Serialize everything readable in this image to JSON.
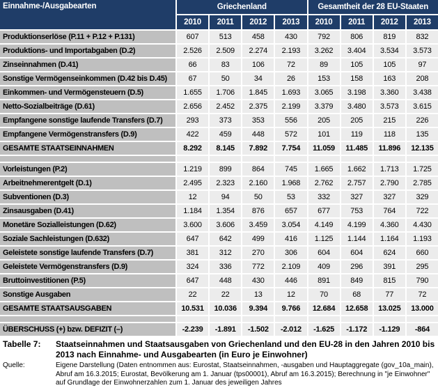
{
  "colors": {
    "header_bg": "#1f3d68",
    "header_text": "#ffffff",
    "row_label_bg": "#bfbfbf",
    "cell_bg": "#ececec",
    "grid_line": "#ffffff",
    "text": "#000000"
  },
  "table": {
    "header": {
      "row_label": "Einnahme-/Ausgabearten",
      "group1": "Griechenland",
      "group2": "Gesamtheit der 28 EU-Staaten",
      "years": [
        "2010",
        "2011",
        "2012",
        "2013",
        "2010",
        "2011",
        "2012",
        "2013"
      ]
    },
    "rows": [
      {
        "style": "data",
        "label": "Produktionserlöse (P.11 + P.12 + P.131)",
        "values": [
          "607",
          "513",
          "458",
          "430",
          "792",
          "806",
          "819",
          "832"
        ]
      },
      {
        "style": "data",
        "label": "Produktions- und Importabgaben (D.2)",
        "values": [
          "2.526",
          "2.509",
          "2.274",
          "2.193",
          "3.262",
          "3.404",
          "3.534",
          "3.573"
        ]
      },
      {
        "style": "data",
        "label": "Zinseinnahmen (D.41)",
        "values": [
          "66",
          "83",
          "106",
          "72",
          "89",
          "105",
          "105",
          "97"
        ]
      },
      {
        "style": "data",
        "label": "Sonstige Vermögenseinkommen (D.42 bis D.45)",
        "values": [
          "67",
          "50",
          "34",
          "26",
          "153",
          "158",
          "163",
          "208"
        ]
      },
      {
        "style": "data",
        "label": "Einkommen- und Vermögensteuern (D.5)",
        "values": [
          "1.655",
          "1.706",
          "1.845",
          "1.693",
          "3.065",
          "3.198",
          "3.360",
          "3.438"
        ]
      },
      {
        "style": "data",
        "label": "Netto-Sozialbeiträge (D.61)",
        "values": [
          "2.656",
          "2.452",
          "2.375",
          "2.199",
          "3.379",
          "3.480",
          "3.573",
          "3.615"
        ]
      },
      {
        "style": "data",
        "label": "Empfangene sonstige laufende Transfers (D.7)",
        "values": [
          "293",
          "373",
          "353",
          "556",
          "205",
          "205",
          "215",
          "226"
        ]
      },
      {
        "style": "data",
        "label": "Empfangene Vermögenstransfers (D.9)",
        "values": [
          "422",
          "459",
          "448",
          "572",
          "101",
          "119",
          "118",
          "135"
        ]
      },
      {
        "style": "total",
        "label": "GESAMTE STAATSEINNAHMEN",
        "values": [
          "8.292",
          "8.145",
          "7.892",
          "7.754",
          "11.059",
          "11.485",
          "11.896",
          "12.135"
        ]
      },
      {
        "style": "spacer",
        "label": "",
        "values": [
          "",
          "",
          "",
          "",
          "",
          "",
          "",
          ""
        ]
      },
      {
        "style": "data",
        "label": "Vorleistungen (P.2)",
        "values": [
          "1.219",
          "899",
          "864",
          "745",
          "1.665",
          "1.662",
          "1.713",
          "1.725"
        ]
      },
      {
        "style": "data",
        "label": "Arbeitnehmerentgelt (D.1)",
        "values": [
          "2.495",
          "2.323",
          "2.160",
          "1.968",
          "2.762",
          "2.757",
          "2.790",
          "2.785"
        ]
      },
      {
        "style": "data",
        "label": "Subventionen (D.3)",
        "values": [
          "12",
          "94",
          "50",
          "53",
          "332",
          "327",
          "327",
          "329"
        ]
      },
      {
        "style": "data",
        "label": "Zinsausgaben (D.41)",
        "values": [
          "1.184",
          "1.354",
          "876",
          "657",
          "677",
          "753",
          "764",
          "722"
        ]
      },
      {
        "style": "data",
        "label": "Monetäre Sozialleistungen (D.62)",
        "values": [
          "3.600",
          "3.606",
          "3.459",
          "3.054",
          "4.149",
          "4.199",
          "4.360",
          "4.430"
        ]
      },
      {
        "style": "data",
        "label": "Soziale Sachleistungen (D.632)",
        "values": [
          "647",
          "642",
          "499",
          "416",
          "1.125",
          "1.144",
          "1.164",
          "1.193"
        ]
      },
      {
        "style": "data",
        "label": "Geleistete sonstige laufende Transfers (D.7)",
        "values": [
          "381",
          "312",
          "270",
          "306",
          "604",
          "604",
          "624",
          "660"
        ]
      },
      {
        "style": "data",
        "label": "Geleistete Vermögenstransfers (D.9)",
        "values": [
          "324",
          "336",
          "772",
          "2.109",
          "409",
          "296",
          "391",
          "295"
        ]
      },
      {
        "style": "data",
        "label": "Bruttoinvestitionen (P.5)",
        "values": [
          "647",
          "448",
          "430",
          "446",
          "891",
          "849",
          "815",
          "790"
        ]
      },
      {
        "style": "data",
        "label": "Sonstige Ausgaben",
        "values": [
          "22",
          "22",
          "13",
          "12",
          "70",
          "68",
          "77",
          "72"
        ]
      },
      {
        "style": "total",
        "label": "GESAMTE STAATSAUSGABEN",
        "values": [
          "10.531",
          "10.036",
          "9.394",
          "9.766",
          "12.684",
          "12.658",
          "13.025",
          "13.000"
        ]
      },
      {
        "style": "spacer",
        "label": "",
        "values": [
          "",
          "",
          "",
          "",
          "",
          "",
          "",
          ""
        ]
      },
      {
        "style": "balance",
        "label": "ÜBERSCHUSS (+) bzw. DEFIZIT (–)",
        "values": [
          "-2.239",
          "-1.891",
          "-1.502",
          "-2.012",
          "-1.625",
          "-1.172",
          "-1.129",
          "-864"
        ]
      }
    ]
  },
  "footer": {
    "table_label": "Tabelle 7:",
    "title": "Staatseinnahmen und Staatsausgaben von Griechenland und den EU-28 in den Jahren 2010 bis 2013 nach Einnahme- und Ausgabearten (in Euro je Einwohner)",
    "source_label": "Quelle:",
    "source_text": "Eigene Darstellung (Daten entnommen aus: Eurostat, Staatseinnahmen, -ausgaben und Hauptaggregate (gov_10a_main), Abruf am 16.3.2015;  Eurostat, Bevölkerung am 1. Januar (tps00001), Abruf am 16.3.2015); Berechnung in \"je Einwohner\" auf Grundlage der Einwohnerzahlen zum 1. Januar des jeweiligen Jahres"
  }
}
